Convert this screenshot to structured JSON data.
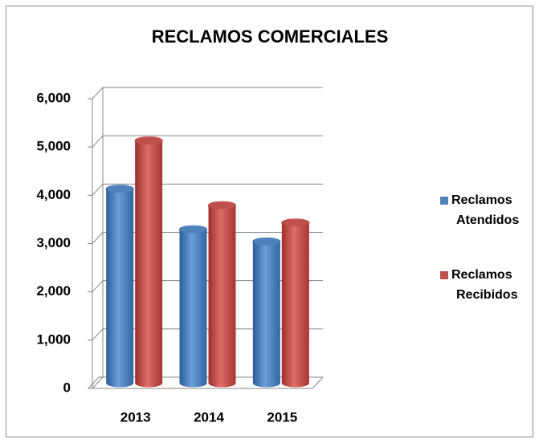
{
  "chart_data": {
    "type": "bar3d",
    "title": "RECLAMOS COMERCIALES",
    "categories": [
      "2013",
      "2014",
      "2015"
    ],
    "series": [
      {
        "name": "Reclamos Atendidos",
        "color": "#4f81bd",
        "values": [
          4020,
          3180,
          2930
        ]
      },
      {
        "name": "Reclamos Recibidos",
        "color": "#c0504d",
        "values": [
          5020,
          3680,
          3320
        ]
      }
    ],
    "ylim": [
      0,
      6000
    ],
    "yticks": [
      0,
      {
        "value": 1000,
        "label": "1,000"
      },
      {
        "value": 2000,
        "label": "2,000"
      },
      {
        "value": 3000,
        "label": "3,000"
      },
      {
        "value": 4000,
        "label": "4,000"
      },
      {
        "value": 5000,
        "label": "5,000"
      },
      {
        "value": 6000,
        "label": "6,000"
      }
    ],
    "grid": true,
    "legend": "right"
  }
}
